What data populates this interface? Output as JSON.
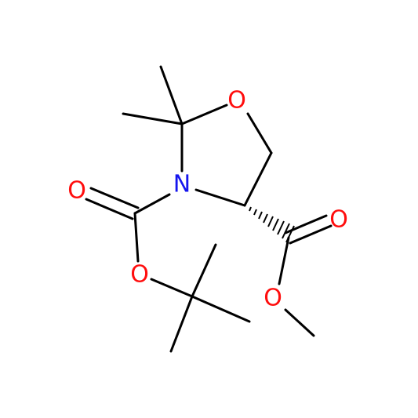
{
  "atoms": [
    {
      "label": "O"
    },
    {
      "label": "N"
    },
    {
      "label": "O"
    },
    {
      "label": "O"
    },
    {
      "label": "O"
    },
    {
      "label": "O"
    }
  ]
}
